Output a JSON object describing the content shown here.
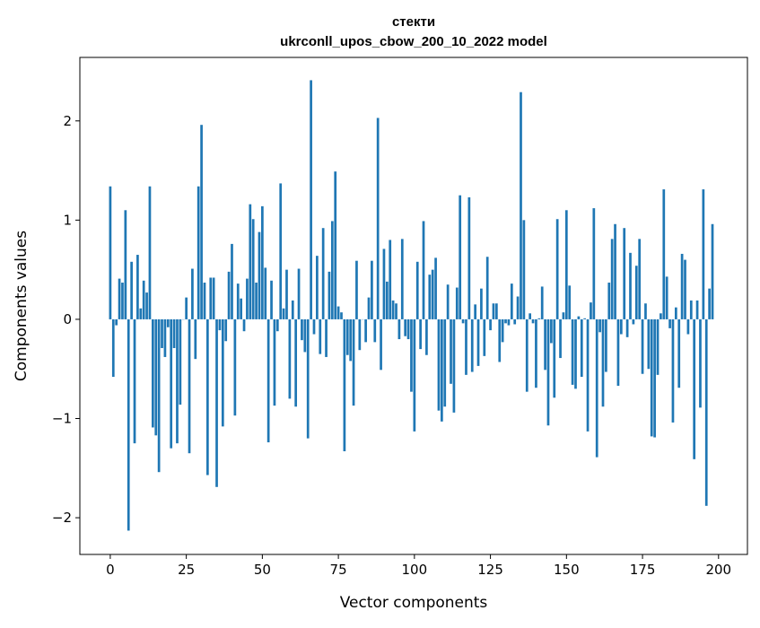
{
  "chart_data": {
    "type": "bar",
    "title": "стекти",
    "subtitle": "ukrconll_upos_cbow_200_10_2022 model",
    "xlabel": "Vector components",
    "ylabel": "Components values",
    "xlim": [
      -10,
      209.5
    ],
    "ylim": [
      -2.37,
      2.64
    ],
    "xticks": [
      0,
      25,
      50,
      75,
      100,
      125,
      150,
      175,
      200
    ],
    "yticks": [
      -2,
      -1,
      0,
      1,
      2
    ],
    "ytick_labels": [
      "−2",
      "−1",
      "0",
      "1",
      "2"
    ],
    "grid": false,
    "color": "#1f77b4",
    "values": [
      1.34,
      -0.58,
      -0.06,
      0.41,
      0.37,
      1.1,
      -2.13,
      0.58,
      -1.25,
      0.65,
      0.11,
      0.39,
      0.27,
      1.34,
      -1.09,
      -1.17,
      -1.54,
      -0.29,
      -0.38,
      -0.08,
      -1.3,
      -0.29,
      -1.25,
      -0.86,
      0.0,
      0.22,
      -1.35,
      0.51,
      -0.4,
      1.34,
      1.96,
      0.37,
      -1.57,
      0.42,
      0.42,
      -1.69,
      -0.11,
      -1.08,
      -0.22,
      0.48,
      0.76,
      -0.97,
      0.36,
      0.21,
      -0.12,
      0.41,
      1.16,
      1.01,
      0.37,
      0.88,
      1.14,
      0.52,
      -1.24,
      0.39,
      -0.87,
      -0.12,
      1.37,
      0.11,
      0.5,
      -0.8,
      0.19,
      -0.88,
      0.51,
      -0.21,
      -0.33,
      -1.2,
      2.41,
      -0.15,
      0.64,
      -0.35,
      0.92,
      -0.38,
      0.48,
      0.99,
      1.49,
      0.13,
      0.07,
      -1.33,
      -0.36,
      -0.42,
      -0.87,
      0.59,
      -0.31,
      0.0,
      -0.23,
      0.22,
      0.59,
      -0.23,
      2.03,
      -0.51,
      0.71,
      0.38,
      0.8,
      0.19,
      0.16,
      -0.2,
      0.81,
      -0.17,
      -0.2,
      -0.73,
      -1.13,
      0.58,
      -0.3,
      0.99,
      -0.36,
      0.45,
      0.5,
      0.62,
      -0.92,
      -1.03,
      -0.88,
      0.35,
      -0.65,
      -0.94,
      0.32,
      1.25,
      -0.04,
      -0.56,
      1.23,
      -0.53,
      0.15,
      -0.47,
      0.31,
      -0.37,
      0.63,
      -0.11,
      0.16,
      0.16,
      -0.43,
      -0.23,
      -0.04,
      -0.06,
      0.36,
      -0.05,
      0.23,
      2.29,
      1.0,
      -0.73,
      0.06,
      -0.04,
      -0.69,
      0.01,
      0.33,
      -0.51,
      -1.07,
      -0.24,
      -0.79,
      1.01,
      -0.39,
      0.07,
      1.1,
      0.34,
      -0.66,
      -0.7,
      0.03,
      -0.58,
      0.01,
      -1.13,
      0.17,
      1.12,
      -1.39,
      -0.13,
      -0.88,
      -0.53,
      0.37,
      0.81,
      0.96,
      -0.67,
      -0.15,
      0.92,
      -0.18,
      0.67,
      -0.05,
      0.54,
      0.81,
      -0.55,
      0.16,
      -0.5,
      -1.18,
      -1.19,
      -0.56,
      0.06,
      1.31,
      0.43,
      -0.09,
      -1.04,
      0.12,
      -0.69,
      0.66,
      0.6,
      -0.15,
      0.19,
      -1.41,
      0.19,
      -0.89,
      1.31,
      -1.88,
      0.31,
      0.96
    ]
  }
}
